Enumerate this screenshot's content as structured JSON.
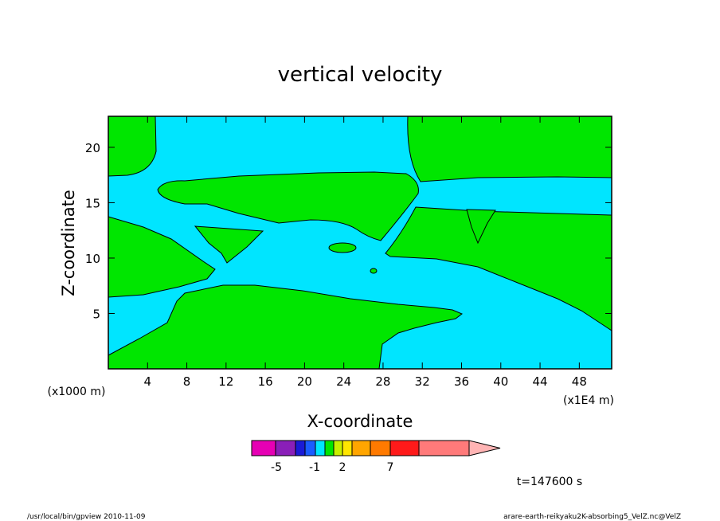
{
  "chart_data": {
    "type": "heatmap",
    "title": "vertical velocity",
    "xlabel": "X-coordinate",
    "ylabel": "Z-coordinate",
    "x_unit_left": "(x1000 m)",
    "x_unit_right": "(x1E4 m)",
    "xlim": [
      0,
      51.3
    ],
    "ylim": [
      0,
      22.8
    ],
    "x_ticks": [
      "4",
      "8",
      "12",
      "16",
      "20",
      "24",
      "28",
      "32",
      "36",
      "40",
      "44",
      "48"
    ],
    "y_ticks": [
      "5",
      "10",
      "15",
      "20"
    ],
    "time_label": "t=147600 s",
    "colorbar": {
      "tick_labels": [
        "-5",
        "-1",
        "2",
        "7"
      ],
      "colors": [
        "#e600b4",
        "#8a1fb8",
        "#1a1ad6",
        "#1a5cff",
        "#00e5ff",
        "#00e600",
        "#c8f000",
        "#ffe600",
        "#ffa500",
        "#ff7a00",
        "#ff1a1a",
        "#ff7a7a",
        "#ffb4b4"
      ]
    },
    "region_colors": {
      "background": "#00e5ff",
      "contour": "#00e600"
    }
  },
  "footer": {
    "left": "/usr/local/bin/gpview   2010-11-09",
    "right": "arare-earth-reikyaku2K-absorbing5_VelZ.nc@VelZ"
  }
}
